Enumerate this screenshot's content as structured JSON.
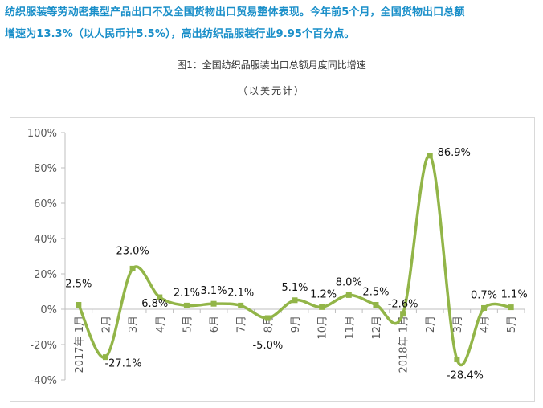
{
  "article": {
    "intro_line1": "纺织服装等劳动密集型产品出口不及全国货物出口贸易整体表现。今年前5个月，全国货物出口总额",
    "intro_line2": "增速为13.3%（以人民币计5.5%），高出纺织品服装行业9.95个百分点。"
  },
  "figure": {
    "title": "图1：全国纺织品服装出口总额月度同比增速",
    "unit": "（以美元计）"
  },
  "chart_data": {
    "type": "line",
    "categories": [
      "2017年 1月",
      "2月",
      "3月",
      "4月",
      "5月",
      "6月",
      "7月",
      "8月",
      "9月",
      "10月",
      "11月",
      "12月",
      "2018年 1月",
      "2月",
      "3月",
      "4月",
      "5月"
    ],
    "series": [
      {
        "values": [
          2.5,
          -27.1,
          23.0,
          6.8,
          2.1,
          3.1,
          2.1,
          -5.0,
          5.1,
          1.2,
          8.0,
          2.5,
          -2.6,
          86.9,
          -28.4,
          0.7,
          1.1
        ],
        "labels": [
          "2.5%",
          "-27.1%",
          "23.0%",
          "6.8%",
          "2.1%",
          "3.1%",
          "2.1%",
          "-5.0%",
          "5.1%",
          "1.2%",
          "8.0%",
          "2.5%",
          "-2.6%",
          "86.9%",
          "-28.4%",
          "0.7%",
          "1.1%"
        ]
      }
    ],
    "yticks": [
      "100%",
      "80%",
      "60%",
      "40%",
      "20%",
      "0%",
      "-20%",
      "-40%"
    ],
    "ylim": [
      -40,
      100
    ],
    "ytick_values": [
      100,
      80,
      60,
      40,
      20,
      0,
      -20,
      -40
    ],
    "grid": false,
    "legend": "none",
    "line_color": "#92b548",
    "axis_color": "#bfbfbf"
  }
}
